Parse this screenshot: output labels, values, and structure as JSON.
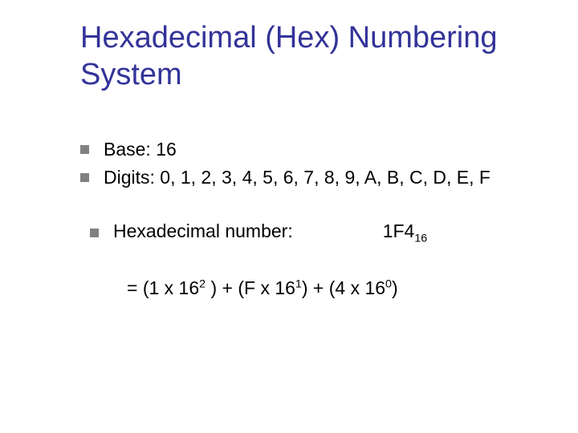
{
  "colors": {
    "title": "#333399",
    "text": "#000000",
    "bullet": "#808080",
    "background": "#ffffff"
  },
  "fontsize": {
    "title": 38,
    "body": 23
  },
  "title": "Hexadecimal (Hex) Numbering System",
  "bullets": [
    {
      "text": "Base: 16"
    },
    {
      "text": "Digits: 0, 1, 2, 3, 4, 5, 6, 7, 8, 9, A, B, C, D, E, F"
    }
  ],
  "example": {
    "label": "Hexadecimal number:",
    "value": "1F4",
    "subscript": "16"
  },
  "calculation": {
    "prefix": "= (1 x 16",
    "exp1": "2",
    "mid1": " ) + (F x 16",
    "exp2": "1",
    "mid2": ") + (4 x 16",
    "exp3": "0",
    "suffix": ")"
  }
}
